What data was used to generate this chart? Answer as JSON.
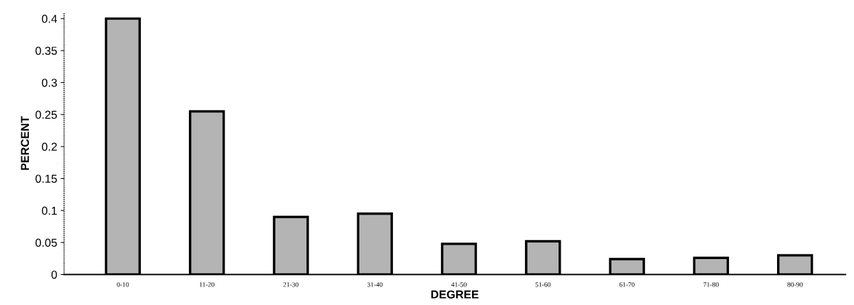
{
  "chart_data": {
    "type": "bar",
    "xlabel": "DEGREE",
    "ylabel": "PERCENT",
    "categories": [
      "0-10",
      "11-20",
      "21-30",
      "31-40",
      "41-50",
      "51-60",
      "61-70",
      "71-80",
      "80-90"
    ],
    "values": [
      0.4,
      0.255,
      0.09,
      0.095,
      0.048,
      0.052,
      0.024,
      0.026,
      0.03
    ],
    "color": "#b4b4b4",
    "ylim": [
      0,
      0.41
    ],
    "yticks": [
      0,
      0.05,
      0.1,
      0.15,
      0.2,
      0.25,
      0.3,
      0.35,
      0.4
    ],
    "grid": false
  }
}
